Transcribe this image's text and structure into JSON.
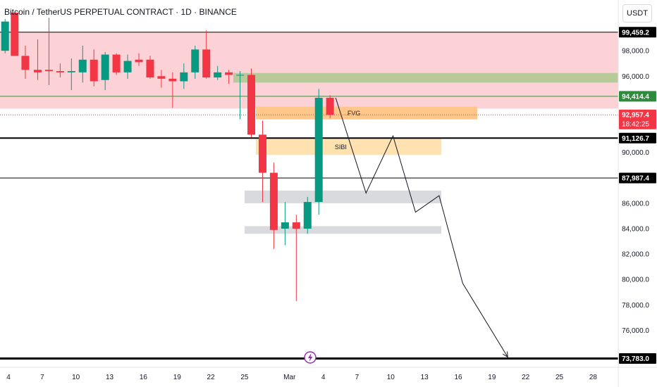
{
  "header": {
    "title": "Bitcoin / TetherUS PERPETUAL CONTRACT · 1D · BINANCE",
    "currency": "USDT"
  },
  "chart_data": {
    "type": "candlestick",
    "ylim": [
      73800,
      101000
    ],
    "y_ticks": [
      {
        "value": 98000,
        "label": "98,000.0"
      },
      {
        "value": 96000,
        "label": "96,000.0"
      },
      {
        "value": 90000,
        "label": "90,000.0"
      },
      {
        "value": 86000,
        "label": "86,000.0"
      },
      {
        "value": 84000,
        "label": "84,000.0"
      },
      {
        "value": 82000,
        "label": "82,000.0"
      },
      {
        "value": 80000,
        "label": "80,000.0"
      },
      {
        "value": 78000,
        "label": "78,000.0"
      },
      {
        "value": 76000,
        "label": "76,000.0"
      }
    ],
    "x_ticks": [
      {
        "index": 0,
        "label": "4"
      },
      {
        "index": 3,
        "label": "7"
      },
      {
        "index": 6,
        "label": "10"
      },
      {
        "index": 9,
        "label": "13"
      },
      {
        "index": 12,
        "label": "16"
      },
      {
        "index": 15,
        "label": "19"
      },
      {
        "index": 18,
        "label": "22"
      },
      {
        "index": 21,
        "label": "25"
      },
      {
        "index": 25,
        "label": "Mar"
      },
      {
        "index": 28,
        "label": "4"
      },
      {
        "index": 31,
        "label": "7"
      },
      {
        "index": 34,
        "label": "10"
      },
      {
        "index": 37,
        "label": "13"
      },
      {
        "index": 40,
        "label": "16"
      },
      {
        "index": 43,
        "label": "19"
      },
      {
        "index": 46,
        "label": "22"
      },
      {
        "index": 49,
        "label": "25"
      },
      {
        "index": 52,
        "label": "28"
      }
    ],
    "candles": [
      {
        "i": -0.3,
        "o": 98000,
        "h": 100500,
        "l": 97800,
        "c": 100300
      },
      {
        "i": 0.55,
        "o": 101000,
        "h": 101000,
        "l": 97600,
        "c": 97600
      },
      {
        "i": 1.5,
        "o": 97600,
        "h": 98400,
        "l": 95800,
        "c": 96500
      },
      {
        "i": 2.6,
        "o": 96500,
        "h": 98900,
        "l": 95700,
        "c": 96300
      },
      {
        "i": 3.6,
        "o": 96500,
        "h": 100600,
        "l": 95300,
        "c": 96400
      },
      {
        "i": 4.6,
        "o": 96400,
        "h": 97000,
        "l": 95900,
        "c": 96300
      },
      {
        "i": 5.6,
        "o": 96300,
        "h": 97400,
        "l": 94900,
        "c": 96400
      },
      {
        "i": 6.6,
        "o": 96300,
        "h": 98400,
        "l": 95500,
        "c": 97300
      },
      {
        "i": 7.6,
        "o": 97300,
        "h": 98100,
        "l": 95200,
        "c": 95600
      },
      {
        "i": 8.6,
        "o": 95700,
        "h": 97900,
        "l": 94900,
        "c": 97700
      },
      {
        "i": 9.6,
        "o": 97700,
        "h": 97800,
        "l": 96100,
        "c": 96300
      },
      {
        "i": 10.6,
        "o": 96300,
        "h": 97700,
        "l": 95800,
        "c": 97200
      },
      {
        "i": 11.6,
        "o": 97300,
        "h": 97800,
        "l": 96800,
        "c": 97100
      },
      {
        "i": 12.6,
        "o": 97300,
        "h": 97600,
        "l": 95800,
        "c": 95900
      },
      {
        "i": 13.6,
        "o": 96000,
        "h": 96500,
        "l": 95100,
        "c": 95800
      },
      {
        "i": 14.6,
        "o": 95800,
        "h": 96300,
        "l": 93500,
        "c": 95600
      },
      {
        "i": 15.6,
        "o": 95600,
        "h": 97000,
        "l": 95000,
        "c": 96300
      },
      {
        "i": 16.6,
        "o": 96300,
        "h": 98400,
        "l": 95800,
        "c": 98100
      },
      {
        "i": 17.6,
        "o": 98100,
        "h": 99600,
        "l": 95800,
        "c": 95900
      },
      {
        "i": 18.6,
        "o": 95900,
        "h": 96800,
        "l": 95700,
        "c": 96300
      },
      {
        "i": 19.6,
        "o": 96300,
        "h": 96500,
        "l": 95400,
        "c": 96100
      },
      {
        "i": 20.6,
        "o": 96100,
        "h": 96400,
        "l": 92600,
        "c": 96100
      },
      {
        "i": 21.6,
        "o": 96100,
        "h": 96600,
        "l": 91200,
        "c": 91400
      },
      {
        "i": 22.6,
        "o": 91400,
        "h": 92500,
        "l": 86100,
        "c": 88400
      },
      {
        "i": 23.6,
        "o": 88400,
        "h": 89200,
        "l": 82400,
        "c": 83900
      },
      {
        "i": 24.6,
        "o": 84000,
        "h": 86100,
        "l": 82700,
        "c": 84500
      },
      {
        "i": 25.6,
        "o": 84500,
        "h": 85100,
        "l": 78300,
        "c": 84000
      },
      {
        "i": 26.6,
        "o": 84000,
        "h": 86500,
        "l": 83600,
        "c": 86100
      },
      {
        "i": 27.6,
        "o": 86100,
        "h": 95000,
        "l": 85100,
        "c": 94300
      },
      {
        "i": 28.6,
        "o": 94300,
        "h": 94500,
        "l": 92700,
        "c": 92950
      }
    ],
    "zones": [
      {
        "name": "premium",
        "from_i": -1,
        "to_i": 58,
        "y1": 99459,
        "y2": 93450,
        "color": "#fcd2d7"
      },
      {
        "name": "green",
        "from_i": 20,
        "to_i": 58,
        "y1": 96250,
        "y2": 95500,
        "color": "#b8c99a"
      },
      {
        "name": "FVG",
        "label": "FVG",
        "from_i": 22,
        "to_i": 41.7,
        "y1": 93600,
        "y2": 92600,
        "color": "#ffc88a"
      },
      {
        "name": "SIBI",
        "label": "SIBI",
        "from_i": 22,
        "to_i": 38.5,
        "y1": 91100,
        "y2": 89800,
        "color": "#ffe2b0"
      },
      {
        "name": "gray1",
        "from_i": 21,
        "to_i": 38.5,
        "y1": 87000,
        "y2": 86000,
        "color": "#d9dadd"
      },
      {
        "name": "gray2",
        "from_i": 21,
        "to_i": 38.5,
        "y1": 84200,
        "y2": 83600,
        "color": "#d9dadd"
      }
    ],
    "hlines": [
      {
        "value": 99459.2,
        "label": "99,459.2",
        "color": "#000000",
        "width": 1
      },
      {
        "value": 94414.4,
        "label": "94,414.4",
        "color": "#3a8f3a",
        "width": 1,
        "badge": "#2e8b3e"
      },
      {
        "value": 91126.7,
        "label": "91,126.7",
        "color": "#000000",
        "width": 2
      },
      {
        "value": 87987.4,
        "label": "87,987.4",
        "color": "#000000",
        "width": 1
      },
      {
        "value": 73783.0,
        "label": "73,783.0",
        "color": "#000000",
        "width": 3
      }
    ],
    "current_price": {
      "value": 92957.4,
      "label": "92,957.4",
      "countdown": "18:42:25",
      "color": "#f23645"
    },
    "projection": [
      {
        "i": 29.1,
        "v": 94300
      },
      {
        "i": 31.8,
        "v": 86800
      },
      {
        "i": 34.2,
        "v": 91300
      },
      {
        "i": 36.2,
        "v": 85300
      },
      {
        "i": 38.3,
        "v": 86600
      },
      {
        "i": 40.4,
        "v": 79700
      },
      {
        "i": 44.4,
        "v": 73900
      }
    ],
    "colors": {
      "up": "#26a69a",
      "down": "#f23645",
      "up_dark": "#089981"
    }
  }
}
